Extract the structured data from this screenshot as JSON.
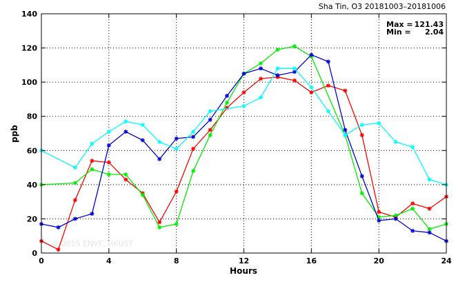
{
  "chart_data": {
    "type": "line",
    "title": "Sha Tin, O3 20181003–20181006",
    "xlabel": "Hours",
    "ylabel": "ppb",
    "xlim": [
      0,
      24
    ],
    "ylim": [
      0,
      140
    ],
    "xticks": [
      0,
      4,
      8,
      12,
      16,
      20,
      24
    ],
    "yticks": [
      0,
      20,
      40,
      60,
      80,
      100,
      120,
      140
    ],
    "grid": true,
    "max_label": "Max =",
    "max_value": "121.43",
    "min_label": "Min =",
    "min_value": "2.04",
    "watermark": "© 2015 ENVF, HKUST",
    "x": [
      0,
      1,
      2,
      3,
      4,
      5,
      6,
      7,
      8,
      9,
      10,
      11,
      12,
      13,
      14,
      15,
      16,
      17,
      18,
      19,
      20,
      21,
      22,
      23,
      24
    ],
    "series": [
      {
        "color": "#ff0000",
        "values": [
          7,
          2,
          31,
          54,
          53,
          43,
          35,
          18,
          36,
          61,
          72,
          85,
          94,
          102,
          103,
          101,
          94,
          98,
          95,
          69,
          24,
          21,
          29,
          26,
          33
        ]
      },
      {
        "color": "#00ee00",
        "values": [
          40,
          null,
          41,
          49,
          46,
          46,
          34,
          15,
          17,
          48,
          69,
          88,
          105,
          111,
          119,
          121,
          115,
          null,
          69,
          35,
          21,
          22,
          26,
          14,
          17
        ]
      },
      {
        "color": "#0000dd",
        "values": [
          17,
          15,
          20,
          23,
          63,
          71,
          66,
          55,
          67,
          68,
          78,
          92,
          105,
          108,
          104,
          106,
          116,
          112,
          72,
          45,
          19,
          20,
          13,
          12,
          7
        ]
      },
      {
        "color": "#00ffff",
        "values": [
          60,
          null,
          50,
          64,
          71,
          77,
          75,
          65,
          61,
          71,
          83,
          null,
          86,
          91,
          108,
          108,
          97,
          83,
          69,
          75,
          76,
          65,
          62,
          43,
          40
        ]
      }
    ]
  }
}
